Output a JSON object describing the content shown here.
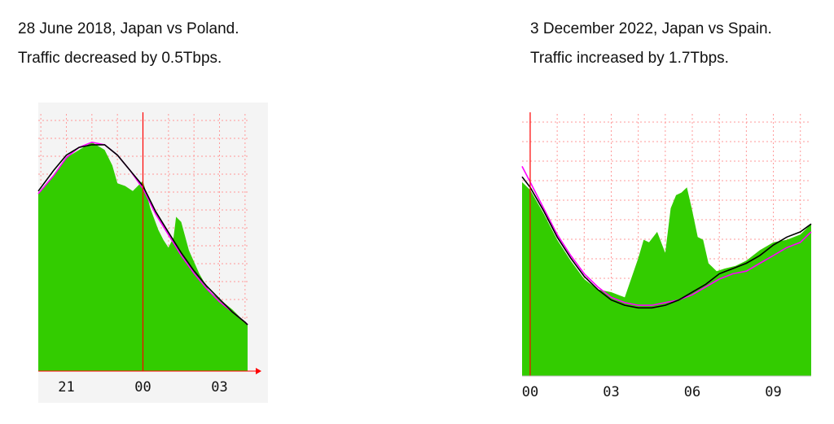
{
  "panels": [
    {
      "line1": "28 June 2018, Japan vs Poland.",
      "line2": "Traffic decreased by 0.5Tbps."
    },
    {
      "line1": "3 December 2022, Japan vs Spain.",
      "line2": "Traffic increased by 1.7Tbps."
    }
  ],
  "colors": {
    "fill": "#33cc00",
    "previous_week_line": "#ff00ff",
    "baseline_line": "#000000",
    "marker": "#ff0000",
    "grid": "#ff9999"
  },
  "chart_data": [
    {
      "type": "area",
      "x_tick_labels": [
        "21",
        "00",
        "03"
      ],
      "x_tick_hours": [
        21,
        24,
        27
      ],
      "x_range_hours": [
        19.9,
        28.1
      ],
      "kickoff_marker_hour": 24,
      "series": [
        {
          "role": "fill",
          "x": [
            19.9,
            20.5,
            21.0,
            21.5,
            22.0,
            22.5,
            22.8,
            23.0,
            23.3,
            23.6,
            23.9,
            24.0,
            24.3,
            24.6,
            24.8,
            25.0,
            25.2,
            25.3,
            25.5,
            25.8,
            26.2,
            26.6,
            27.0,
            27.5,
            28.0,
            28.1
          ],
          "y": [
            0.69,
            0.76,
            0.83,
            0.86,
            0.89,
            0.86,
            0.8,
            0.73,
            0.72,
            0.7,
            0.73,
            0.74,
            0.63,
            0.55,
            0.51,
            0.48,
            0.52,
            0.6,
            0.58,
            0.47,
            0.38,
            0.31,
            0.28,
            0.24,
            0.19,
            0.18
          ]
        },
        {
          "role": "line-previous",
          "x": [
            19.9,
            20.5,
            21.0,
            21.5,
            22.0,
            22.5,
            23.0,
            23.5,
            24.0,
            24.5,
            25.0,
            25.5,
            26.0,
            26.5,
            27.0,
            27.5,
            28.0,
            28.1
          ],
          "y": [
            0.69,
            0.76,
            0.83,
            0.87,
            0.89,
            0.88,
            0.84,
            0.78,
            0.71,
            0.61,
            0.53,
            0.45,
            0.38,
            0.32,
            0.27,
            0.23,
            0.19,
            0.18
          ]
        },
        {
          "role": "line-baseline",
          "x": [
            19.9,
            20.5,
            21.0,
            21.5,
            22.0,
            22.5,
            23.0,
            23.5,
            24.0,
            24.5,
            25.0,
            25.5,
            26.0,
            26.5,
            27.0,
            27.5,
            28.0,
            28.1
          ],
          "y": [
            0.7,
            0.78,
            0.84,
            0.87,
            0.88,
            0.88,
            0.84,
            0.78,
            0.72,
            0.62,
            0.54,
            0.46,
            0.39,
            0.33,
            0.28,
            0.23,
            0.19,
            0.18
          ]
        }
      ]
    },
    {
      "type": "area",
      "x_tick_labels": [
        "00",
        "03",
        "06",
        "09"
      ],
      "x_tick_hours": [
        0,
        3,
        6,
        9
      ],
      "x_range_hours": [
        -0.3,
        10.4
      ],
      "kickoff_marker_hour": 0,
      "series": [
        {
          "role": "fill",
          "x": [
            -0.3,
            0.0,
            0.5,
            1.0,
            1.5,
            2.0,
            2.5,
            3.0,
            3.5,
            4.0,
            4.2,
            4.4,
            4.7,
            5.0,
            5.2,
            5.4,
            5.6,
            5.8,
            6.0,
            6.2,
            6.4,
            6.6,
            6.9,
            7.2,
            7.6,
            8.0,
            8.5,
            9.0,
            9.5,
            10.0,
            10.4
          ],
          "y": [
            0.74,
            0.71,
            0.62,
            0.52,
            0.44,
            0.37,
            0.33,
            0.32,
            0.3,
            0.45,
            0.52,
            0.51,
            0.55,
            0.47,
            0.64,
            0.69,
            0.7,
            0.72,
            0.63,
            0.53,
            0.52,
            0.43,
            0.4,
            0.41,
            0.42,
            0.44,
            0.48,
            0.51,
            0.52,
            0.54,
            0.58
          ]
        },
        {
          "role": "line-previous",
          "x": [
            -0.3,
            0.0,
            0.5,
            1.0,
            1.5,
            2.0,
            2.5,
            3.0,
            3.5,
            4.0,
            4.5,
            5.0,
            5.5,
            6.0,
            6.5,
            7.0,
            7.5,
            8.0,
            8.5,
            9.0,
            9.5,
            10.0,
            10.4
          ],
          "y": [
            0.8,
            0.74,
            0.64,
            0.54,
            0.46,
            0.39,
            0.34,
            0.3,
            0.28,
            0.27,
            0.27,
            0.28,
            0.29,
            0.31,
            0.34,
            0.37,
            0.39,
            0.4,
            0.43,
            0.46,
            0.49,
            0.51,
            0.55
          ]
        },
        {
          "role": "line-baseline",
          "x": [
            -0.3,
            0.0,
            0.5,
            1.0,
            1.5,
            2.0,
            2.5,
            3.0,
            3.5,
            4.0,
            4.5,
            5.0,
            5.5,
            6.0,
            6.5,
            7.0,
            7.5,
            8.0,
            8.5,
            9.0,
            9.5,
            10.0,
            10.4
          ],
          "y": [
            0.76,
            0.72,
            0.63,
            0.53,
            0.45,
            0.38,
            0.33,
            0.29,
            0.27,
            0.26,
            0.26,
            0.27,
            0.29,
            0.32,
            0.35,
            0.39,
            0.41,
            0.43,
            0.46,
            0.5,
            0.53,
            0.55,
            0.58
          ]
        }
      ]
    }
  ]
}
